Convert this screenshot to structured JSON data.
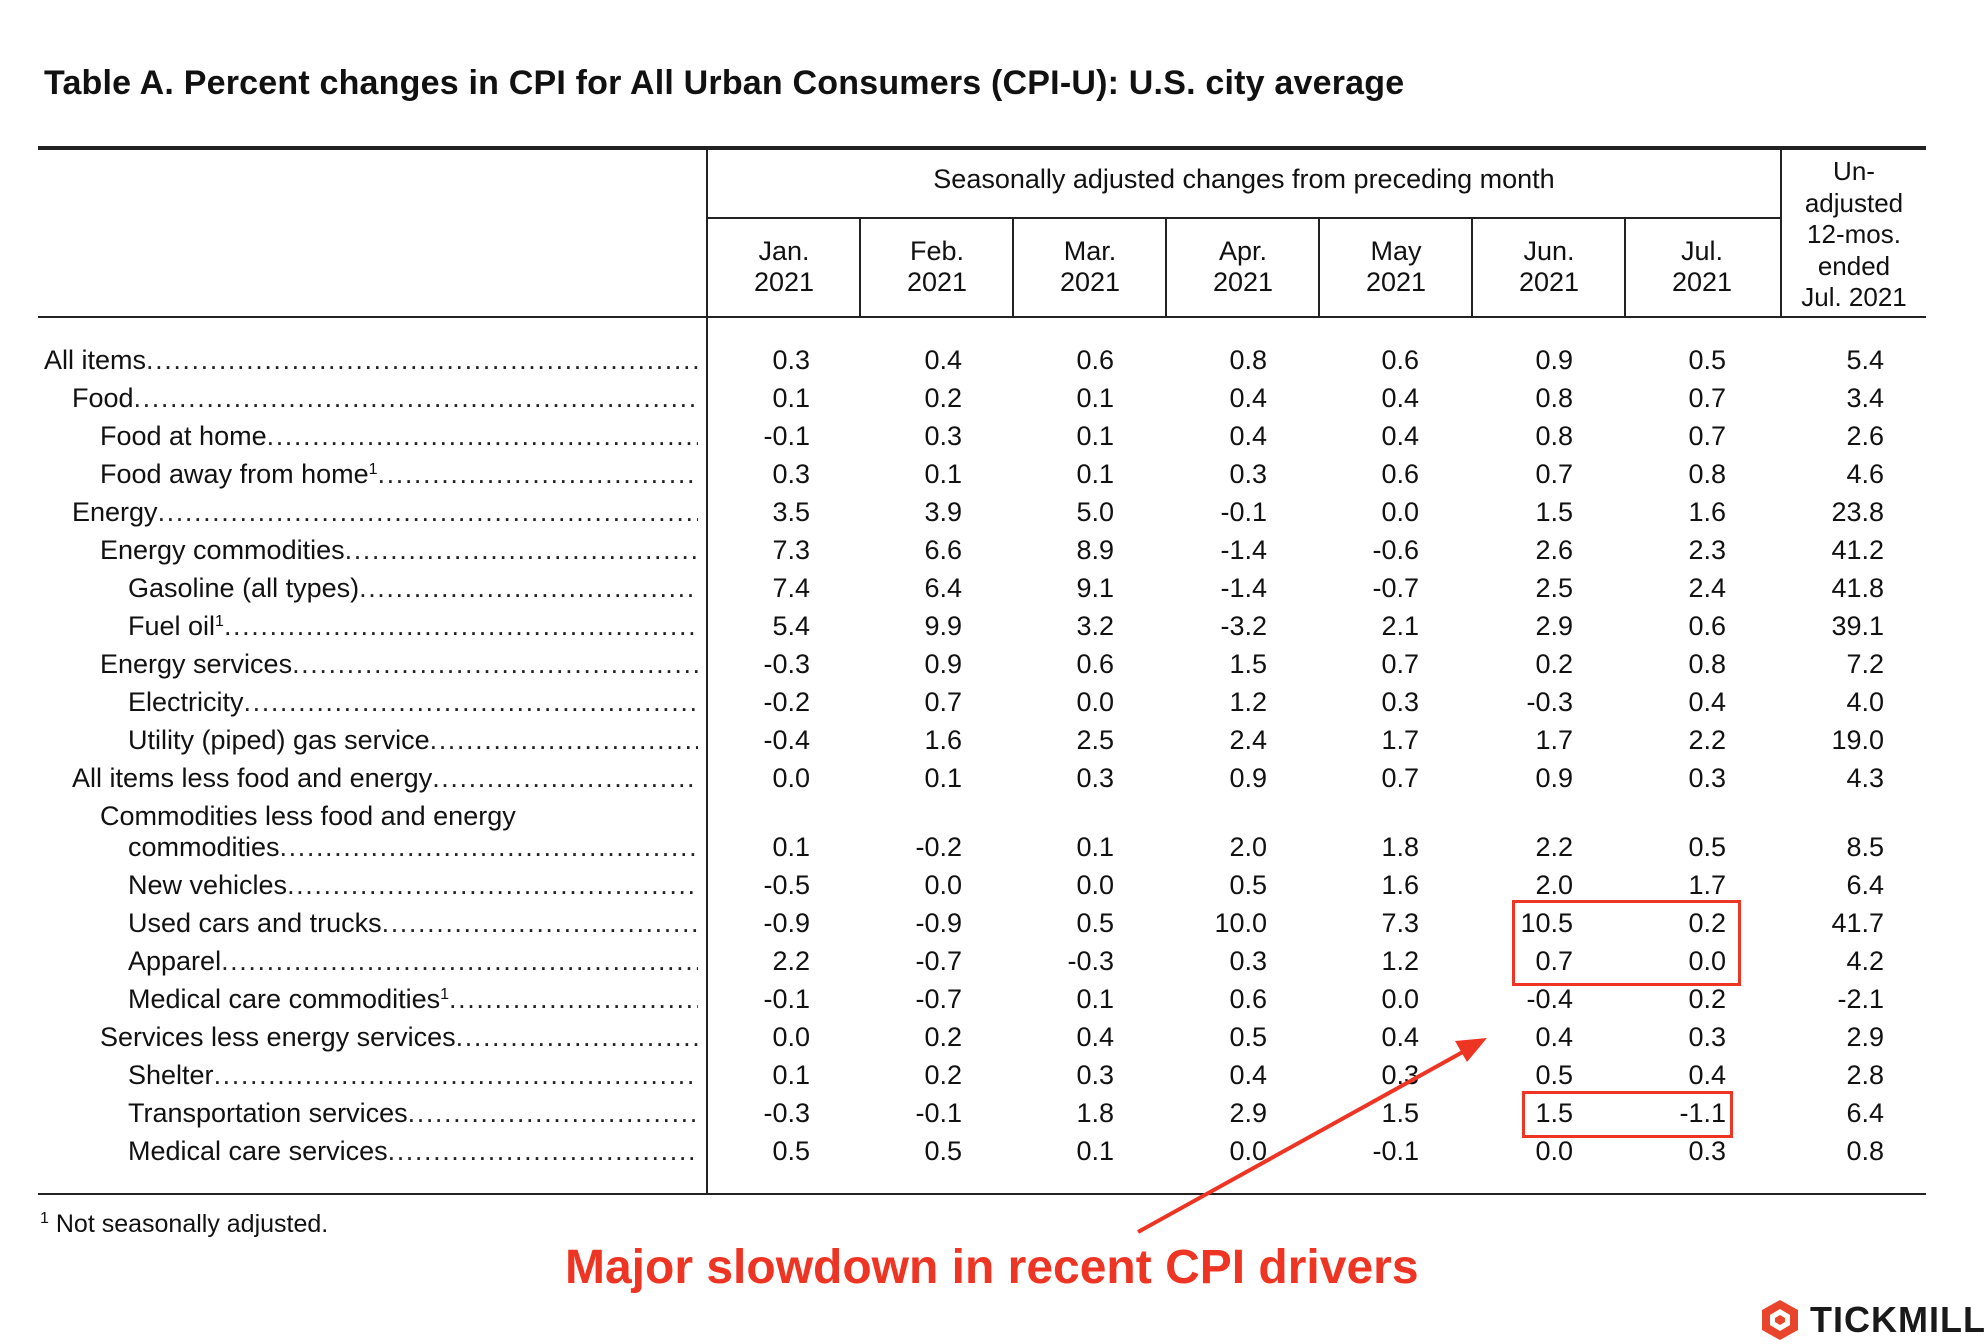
{
  "title": "Table A. Percent changes in CPI for All Urban Consumers (CPI-U): U.S. city average",
  "header": {
    "span_label": "Seasonally adjusted changes from preceding month",
    "months": [
      {
        "m": "Jan.",
        "y": "2021"
      },
      {
        "m": "Feb.",
        "y": "2021"
      },
      {
        "m": "Mar.",
        "y": "2021"
      },
      {
        "m": "Apr.",
        "y": "2021"
      },
      {
        "m": "May",
        "y": "2021"
      },
      {
        "m": "Jun.",
        "y": "2021"
      },
      {
        "m": "Jul.",
        "y": "2021"
      }
    ],
    "unadjusted": [
      "Un-",
      "adjusted",
      "12-mos.",
      "ended",
      "Jul. 2021"
    ]
  },
  "rows": [
    {
      "label": "All items",
      "sup": "",
      "values": [
        "0.3",
        "0.4",
        "0.6",
        "0.8",
        "0.6",
        "0.9",
        "0.5",
        "5.4"
      ]
    },
    {
      "label": "Food",
      "sup": "",
      "values": [
        "0.1",
        "0.2",
        "0.1",
        "0.4",
        "0.4",
        "0.8",
        "0.7",
        "3.4"
      ]
    },
    {
      "label": "Food at home",
      "sup": "",
      "values": [
        "-0.1",
        "0.3",
        "0.1",
        "0.4",
        "0.4",
        "0.8",
        "0.7",
        "2.6"
      ]
    },
    {
      "label": "Food away from home",
      "sup": "1",
      "values": [
        "0.3",
        "0.1",
        "0.1",
        "0.3",
        "0.6",
        "0.7",
        "0.8",
        "4.6"
      ]
    },
    {
      "label": "Energy",
      "sup": "",
      "values": [
        "3.5",
        "3.9",
        "5.0",
        "-0.1",
        "0.0",
        "1.5",
        "1.6",
        "23.8"
      ]
    },
    {
      "label": "Energy commodities",
      "sup": "",
      "values": [
        "7.3",
        "6.6",
        "8.9",
        "-1.4",
        "-0.6",
        "2.6",
        "2.3",
        "41.2"
      ]
    },
    {
      "label": "Gasoline (all types)",
      "sup": "",
      "values": [
        "7.4",
        "6.4",
        "9.1",
        "-1.4",
        "-0.7",
        "2.5",
        "2.4",
        "41.8"
      ]
    },
    {
      "label": "Fuel oil",
      "sup": "1",
      "values": [
        "5.4",
        "9.9",
        "3.2",
        "-3.2",
        "2.1",
        "2.9",
        "0.6",
        "39.1"
      ]
    },
    {
      "label": "Energy services",
      "sup": "",
      "values": [
        "-0.3",
        "0.9",
        "0.6",
        "1.5",
        "0.7",
        "0.2",
        "0.8",
        "7.2"
      ]
    },
    {
      "label": "Electricity",
      "sup": "",
      "values": [
        "-0.2",
        "0.7",
        "0.0",
        "1.2",
        "0.3",
        "-0.3",
        "0.4",
        "4.0"
      ]
    },
    {
      "label": "Utility (piped) gas service",
      "sup": "",
      "values": [
        "-0.4",
        "1.6",
        "2.5",
        "2.4",
        "1.7",
        "1.7",
        "2.2",
        "19.0"
      ]
    },
    {
      "label": "All items less food and energy",
      "sup": "",
      "values": [
        "0.0",
        "0.1",
        "0.3",
        "0.9",
        "0.7",
        "0.9",
        "0.3",
        "4.3"
      ]
    },
    {
      "label": "Commodities less food and energy",
      "sup": "",
      "values": []
    },
    {
      "label": "commodities",
      "sup": "",
      "values": [
        "0.1",
        "-0.2",
        "0.1",
        "2.0",
        "1.8",
        "2.2",
        "0.5",
        "8.5"
      ]
    },
    {
      "label": "New vehicles",
      "sup": "",
      "values": [
        "-0.5",
        "0.0",
        "0.0",
        "0.5",
        "1.6",
        "2.0",
        "1.7",
        "6.4"
      ]
    },
    {
      "label": "Used cars and trucks",
      "sup": "",
      "values": [
        "-0.9",
        "-0.9",
        "0.5",
        "10.0",
        "7.3",
        "10.5",
        "0.2",
        "41.7"
      ]
    },
    {
      "label": "Apparel",
      "sup": "",
      "values": [
        "2.2",
        "-0.7",
        "-0.3",
        "0.3",
        "1.2",
        "0.7",
        "0.0",
        "4.2"
      ]
    },
    {
      "label": "Medical care commodities",
      "sup": "1",
      "values": [
        "-0.1",
        "-0.7",
        "0.1",
        "0.6",
        "0.0",
        "-0.4",
        "0.2",
        "-2.1"
      ]
    },
    {
      "label": "Services less energy services",
      "sup": "",
      "values": [
        "0.0",
        "0.2",
        "0.4",
        "0.5",
        "0.4",
        "0.4",
        "0.3",
        "2.9"
      ]
    },
    {
      "label": "Shelter",
      "sup": "",
      "values": [
        "0.1",
        "0.2",
        "0.3",
        "0.4",
        "0.3",
        "0.5",
        "0.4",
        "2.8"
      ]
    },
    {
      "label": "Transportation services",
      "sup": "",
      "values": [
        "-0.3",
        "-0.1",
        "1.8",
        "2.9",
        "1.5",
        "1.5",
        "-1.1",
        "6.4"
      ]
    },
    {
      "label": "Medical care services",
      "sup": "",
      "values": [
        "0.5",
        "0.5",
        "0.1",
        "0.0",
        "-0.1",
        "0.0",
        "0.3",
        "0.8"
      ]
    }
  ],
  "footnote": {
    "mark": "1",
    "text": "Not seasonally adjusted."
  },
  "annotation": "Major slowdown in recent CPI drivers",
  "logo": "TICKMILL",
  "colors": {
    "accent": "#ee3524",
    "text": "#111111",
    "logo_mark": "#e8452c"
  }
}
